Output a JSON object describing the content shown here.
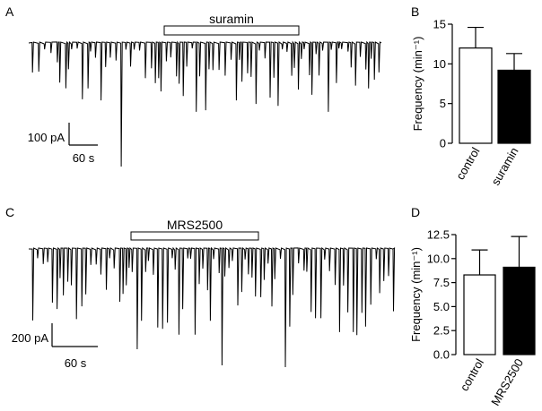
{
  "panels": {
    "A": {
      "letter": "A",
      "drug_label": "suramin",
      "scale_y": "100 pA",
      "scale_x": "60 s"
    },
    "B": {
      "letter": "B"
    },
    "C": {
      "letter": "C",
      "drug_label": "MRS2500",
      "scale_y": "200 pA",
      "scale_x": "60 s"
    },
    "D": {
      "letter": "D"
    }
  },
  "chart_data": [
    {
      "panel": "B",
      "type": "bar",
      "categories": [
        "control",
        "suramin"
      ],
      "values": [
        12.0,
        9.2
      ],
      "errors": [
        2.6,
        2.1
      ],
      "colors": [
        "#ffffff",
        "#000000"
      ],
      "title": "",
      "xlabel": "",
      "ylabel": "Frequency (min⁻¹)",
      "ylim": [
        0,
        15
      ],
      "yticks": [
        "0",
        "5",
        "10",
        "15"
      ],
      "grid": false
    },
    {
      "panel": "D",
      "type": "bar",
      "categories": [
        "control",
        "MRS2500"
      ],
      "values": [
        8.3,
        9.1
      ],
      "errors": [
        2.6,
        3.2
      ],
      "colors": [
        "#ffffff",
        "#000000"
      ],
      "title": "",
      "xlabel": "",
      "ylabel": "Frequency (min⁻¹)",
      "ylim": [
        0,
        12.5
      ],
      "yticks": [
        "0.0",
        "2.5",
        "5.0",
        "7.5",
        "10.0",
        "12.5"
      ],
      "grid": false
    }
  ]
}
